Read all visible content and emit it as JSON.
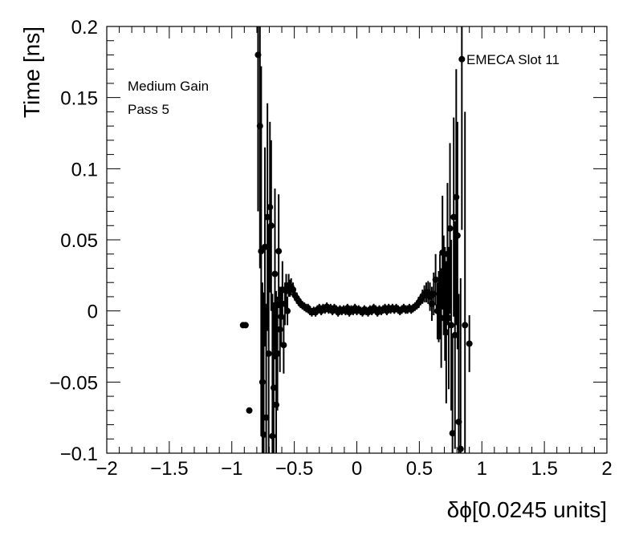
{
  "chart_data": {
    "type": "scatter",
    "xlabel": "δϕ[0.0245 units]",
    "ylabel": "Time [ns]",
    "xlim": [
      -2,
      2
    ],
    "ylim": [
      -0.1,
      0.2
    ],
    "grid": false,
    "x_ticks": [
      {
        "value": -2,
        "label": "−2"
      },
      {
        "value": -1.5,
        "label": "−1.5"
      },
      {
        "value": -1,
        "label": "−1"
      },
      {
        "value": -0.5,
        "label": "−0.5"
      },
      {
        "value": 0,
        "label": "0"
      },
      {
        "value": 0.5,
        "label": "0.5"
      },
      {
        "value": 1,
        "label": "1"
      },
      {
        "value": 1.5,
        "label": "1.5"
      },
      {
        "value": 2,
        "label": "2"
      }
    ],
    "y_ticks": [
      {
        "value": -0.1,
        "label": "−0.1"
      },
      {
        "value": -0.05,
        "label": "−0.05"
      },
      {
        "value": 0,
        "label": "0"
      },
      {
        "value": 0.05,
        "label": "0.05"
      },
      {
        "value": 0.1,
        "label": "0.1"
      },
      {
        "value": 0.15,
        "label": "0.15"
      },
      {
        "value": 0.2,
        "label": "0.2"
      }
    ],
    "annotations": {
      "gain": "Medium Gain",
      "pass": "Pass 5",
      "slot": "EMECA Slot 11"
    },
    "series": [
      {
        "color": "#000000",
        "points": [
          {
            "x": -0.91,
            "y": -0.01,
            "err": 0
          },
          {
            "x": -0.89,
            "y": -0.01,
            "err": 0
          },
          {
            "x": -0.86,
            "y": -0.07,
            "err": 0
          },
          {
            "x": -0.79,
            "y": 0.18,
            "err": 0.11
          },
          {
            "x": -0.775,
            "y": 0.13,
            "err": 0.1
          },
          {
            "x": -0.765,
            "y": 0.042,
            "err": 0.13
          },
          {
            "x": -0.755,
            "y": -0.05,
            "err": 0.07
          },
          {
            "x": -0.745,
            "y": -0.087,
            "err": 0.1
          },
          {
            "x": -0.735,
            "y": 0.045,
            "err": 0.07
          },
          {
            "x": -0.725,
            "y": -0.075,
            "err": 0.08
          },
          {
            "x": -0.715,
            "y": 0.066,
            "err": 0.08
          },
          {
            "x": -0.705,
            "y": -0.03,
            "err": 0.09
          },
          {
            "x": -0.695,
            "y": 0.073,
            "err": 0.06
          },
          {
            "x": -0.685,
            "y": 0.06,
            "err": 0.06
          },
          {
            "x": -0.675,
            "y": -0.088,
            "err": 0.1
          },
          {
            "x": -0.665,
            "y": -0.054,
            "err": 0.06
          },
          {
            "x": -0.655,
            "y": 0.026,
            "err": 0.06
          },
          {
            "x": -0.645,
            "y": -0.066,
            "err": 0.08
          },
          {
            "x": -0.635,
            "y": -0.03,
            "err": 0.04
          },
          {
            "x": -0.625,
            "y": 0.042,
            "err": 0.04
          },
          {
            "x": -0.615,
            "y": -0.013,
            "err": 0.03
          },
          {
            "x": -0.605,
            "y": -0.004,
            "err": 0.02
          },
          {
            "x": -0.595,
            "y": 0.015,
            "err": 0.02
          },
          {
            "x": -0.585,
            "y": -0.024,
            "err": 0.02
          },
          {
            "x": -0.575,
            "y": 0.005,
            "err": 0.015
          },
          {
            "x": -0.565,
            "y": 0.014,
            "err": 0.012
          },
          {
            "x": -0.555,
            "y": 0.0,
            "err": 0.01
          },
          {
            "x": -0.545,
            "y": 0.018,
            "err": 0.008
          },
          {
            "x": -0.535,
            "y": 0.016,
            "err": 0.006
          },
          {
            "x": -0.525,
            "y": 0.017,
            "err": 0.006
          },
          {
            "x": -0.51,
            "y": 0.015,
            "err": 0.005
          },
          {
            "x": -0.495,
            "y": 0.011,
            "err": 0.004
          },
          {
            "x": -0.48,
            "y": 0.009,
            "err": 0.004
          },
          {
            "x": -0.465,
            "y": 0.007,
            "err": 0.003
          },
          {
            "x": -0.45,
            "y": 0.005,
            "err": 0.003
          },
          {
            "x": -0.435,
            "y": 0.004,
            "err": 0.003
          },
          {
            "x": -0.42,
            "y": 0.003,
            "err": 0.003
          },
          {
            "x": -0.405,
            "y": 0.002,
            "err": 0.003
          },
          {
            "x": -0.39,
            "y": 0.002,
            "err": 0.003
          },
          {
            "x": -0.375,
            "y": 0.0,
            "err": 0.003
          },
          {
            "x": -0.36,
            "y": -0.001,
            "err": 0.003
          },
          {
            "x": -0.345,
            "y": 0.0,
            "err": 0.003
          },
          {
            "x": -0.33,
            "y": -0.001,
            "err": 0.003
          },
          {
            "x": -0.315,
            "y": 0.001,
            "err": 0.003
          },
          {
            "x": -0.3,
            "y": 0.002,
            "err": 0.003
          },
          {
            "x": -0.285,
            "y": 0.0,
            "err": 0.003
          },
          {
            "x": -0.27,
            "y": 0.002,
            "err": 0.003
          },
          {
            "x": -0.255,
            "y": 0.001,
            "err": 0.003
          },
          {
            "x": -0.24,
            "y": 0.003,
            "err": 0.003
          },
          {
            "x": -0.225,
            "y": 0.001,
            "err": 0.003
          },
          {
            "x": -0.21,
            "y": 0.002,
            "err": 0.003
          },
          {
            "x": -0.195,
            "y": 0.0,
            "err": 0.003
          },
          {
            "x": -0.18,
            "y": 0.002,
            "err": 0.003
          },
          {
            "x": -0.165,
            "y": 0.001,
            "err": 0.003
          },
          {
            "x": -0.15,
            "y": -0.001,
            "err": 0.003
          },
          {
            "x": -0.135,
            "y": 0.001,
            "err": 0.003
          },
          {
            "x": -0.12,
            "y": 0.0,
            "err": 0.003
          },
          {
            "x": -0.105,
            "y": 0.001,
            "err": 0.003
          },
          {
            "x": -0.09,
            "y": 0.0,
            "err": 0.003
          },
          {
            "x": -0.075,
            "y": 0.002,
            "err": 0.003
          },
          {
            "x": -0.06,
            "y": -0.001,
            "err": 0.003
          },
          {
            "x": -0.045,
            "y": 0.001,
            "err": 0.003
          },
          {
            "x": -0.03,
            "y": 0.0,
            "err": 0.003
          },
          {
            "x": -0.015,
            "y": 0.002,
            "err": 0.003
          },
          {
            "x": 0.0,
            "y": 0.0,
            "err": 0.003
          },
          {
            "x": 0.015,
            "y": 0.001,
            "err": 0.003
          },
          {
            "x": 0.03,
            "y": 0.0,
            "err": 0.003
          },
          {
            "x": 0.045,
            "y": -0.001,
            "err": 0.003
          },
          {
            "x": 0.06,
            "y": 0.001,
            "err": 0.003
          },
          {
            "x": 0.075,
            "y": 0.0,
            "err": 0.003
          },
          {
            "x": 0.09,
            "y": -0.001,
            "err": 0.003
          },
          {
            "x": 0.105,
            "y": 0.001,
            "err": 0.003
          },
          {
            "x": 0.12,
            "y": 0.0,
            "err": 0.003
          },
          {
            "x": 0.135,
            "y": 0.002,
            "err": 0.003
          },
          {
            "x": 0.15,
            "y": 0.001,
            "err": 0.003
          },
          {
            "x": 0.165,
            "y": -0.001,
            "err": 0.003
          },
          {
            "x": 0.18,
            "y": 0.001,
            "err": 0.003
          },
          {
            "x": 0.195,
            "y": 0.0,
            "err": 0.003
          },
          {
            "x": 0.21,
            "y": 0.001,
            "err": 0.003
          },
          {
            "x": 0.225,
            "y": 0.002,
            "err": 0.003
          },
          {
            "x": 0.24,
            "y": 0.0,
            "err": 0.003
          },
          {
            "x": 0.255,
            "y": 0.002,
            "err": 0.003
          },
          {
            "x": 0.27,
            "y": 0.001,
            "err": 0.003
          },
          {
            "x": 0.285,
            "y": 0.002,
            "err": 0.003
          },
          {
            "x": 0.3,
            "y": 0.001,
            "err": 0.003
          },
          {
            "x": 0.315,
            "y": 0.002,
            "err": 0.003
          },
          {
            "x": 0.33,
            "y": 0.001,
            "err": 0.003
          },
          {
            "x": 0.345,
            "y": 0.0,
            "err": 0.003
          },
          {
            "x": 0.36,
            "y": 0.001,
            "err": 0.003
          },
          {
            "x": 0.375,
            "y": 0.002,
            "err": 0.003
          },
          {
            "x": 0.39,
            "y": 0.001,
            "err": 0.003
          },
          {
            "x": 0.405,
            "y": 0.001,
            "err": 0.003
          },
          {
            "x": 0.42,
            "y": 0.002,
            "err": 0.003
          },
          {
            "x": 0.435,
            "y": 0.001,
            "err": 0.003
          },
          {
            "x": 0.45,
            "y": 0.002,
            "err": 0.003
          },
          {
            "x": 0.465,
            "y": 0.003,
            "err": 0.003
          },
          {
            "x": 0.48,
            "y": 0.004,
            "err": 0.003
          },
          {
            "x": 0.495,
            "y": 0.006,
            "err": 0.004
          },
          {
            "x": 0.51,
            "y": 0.008,
            "err": 0.004
          },
          {
            "x": 0.525,
            "y": 0.01,
            "err": 0.005
          },
          {
            "x": 0.54,
            "y": 0.012,
            "err": 0.006
          },
          {
            "x": 0.555,
            "y": 0.013,
            "err": 0.007
          },
          {
            "x": 0.57,
            "y": 0.013,
            "err": 0.008
          },
          {
            "x": 0.585,
            "y": 0.01,
            "err": 0.01
          },
          {
            "x": 0.6,
            "y": 0.005,
            "err": 0.012
          },
          {
            "x": 0.615,
            "y": 0.012,
            "err": 0.015
          },
          {
            "x": 0.63,
            "y": 0.022,
            "err": 0.018
          },
          {
            "x": 0.645,
            "y": 0.0,
            "err": 0.02
          },
          {
            "x": 0.655,
            "y": 0.003,
            "err": 0.025
          },
          {
            "x": 0.665,
            "y": 0.01,
            "err": 0.03
          },
          {
            "x": 0.675,
            "y": -0.005,
            "err": 0.035
          },
          {
            "x": 0.685,
            "y": 0.041,
            "err": 0.04
          },
          {
            "x": 0.695,
            "y": 0.018,
            "err": 0.035
          },
          {
            "x": 0.705,
            "y": 0.005,
            "err": 0.04
          },
          {
            "x": 0.715,
            "y": -0.015,
            "err": 0.05
          },
          {
            "x": 0.725,
            "y": 0.04,
            "err": 0.05
          },
          {
            "x": 0.735,
            "y": -0.005,
            "err": 0.05
          },
          {
            "x": 0.745,
            "y": 0.058,
            "err": 0.06
          },
          {
            "x": 0.755,
            "y": -0.01,
            "err": 0.06
          },
          {
            "x": 0.765,
            "y": -0.086,
            "err": 0.07
          },
          {
            "x": 0.775,
            "y": 0.066,
            "err": 0.07
          },
          {
            "x": 0.785,
            "y": -0.017,
            "err": 0.08
          },
          {
            "x": 0.795,
            "y": 0.08,
            "err": 0.09
          },
          {
            "x": 0.805,
            "y": 0.053,
            "err": 0.08
          },
          {
            "x": 0.815,
            "y": -0.078,
            "err": 0.09
          },
          {
            "x": 0.83,
            "y": -0.097,
            "err": 0.12
          },
          {
            "x": 0.84,
            "y": 0.177,
            "err": 0.12
          },
          {
            "x": 0.865,
            "y": -0.01,
            "err": 0.15
          },
          {
            "x": 0.9,
            "y": -0.023,
            "err": 0.02
          }
        ]
      }
    ]
  }
}
